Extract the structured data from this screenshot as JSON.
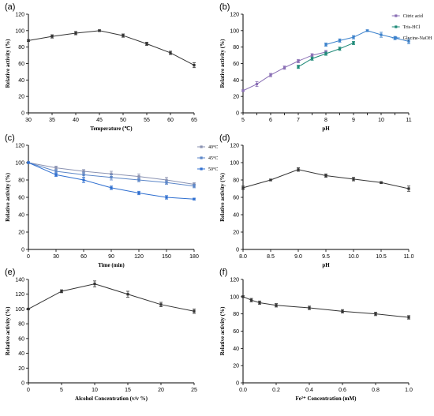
{
  "chart_data": [
    {
      "panel": "(a)",
      "type": "line",
      "xlabel": "Temperature (℃)",
      "ylabel": "Relative activity (%)",
      "xlim": [
        30,
        65
      ],
      "ylim": [
        0,
        120
      ],
      "xticks": [
        30,
        35,
        40,
        45,
        50,
        55,
        60,
        65
      ],
      "yticks": [
        0,
        20,
        40,
        60,
        80,
        100,
        120
      ],
      "colors": {
        "series": "#333333"
      },
      "series": [
        {
          "x": [
            30,
            35,
            40,
            45,
            50,
            55,
            60,
            65
          ],
          "values": [
            88,
            93,
            97,
            100,
            94,
            84,
            73,
            58
          ],
          "errors": [
            1,
            2,
            2,
            1,
            2,
            2,
            2,
            3
          ],
          "color": "#333333"
        }
      ]
    },
    {
      "panel": "(b)",
      "type": "line",
      "xlabel": "pH",
      "ylabel": "Relative activity (%)",
      "xlim": [
        5,
        11
      ],
      "ylim": [
        0,
        120
      ],
      "xticks": [
        5,
        5.5,
        6,
        6.5,
        7,
        7.5,
        8,
        8.5,
        9,
        9.5,
        10,
        10.5,
        11
      ],
      "xticklabels": [
        "5",
        "",
        "6",
        "",
        "7",
        "",
        "8",
        "",
        "9",
        "",
        "10",
        "",
        "11"
      ],
      "yticks": [
        0,
        20,
        40,
        60,
        80,
        100,
        120
      ],
      "legend": "top-right",
      "series": [
        {
          "name": "Citric acid",
          "x": [
            5,
            5.5,
            6,
            6.5,
            7,
            7.5,
            8
          ],
          "values": [
            27,
            35,
            46,
            55,
            63,
            70,
            74
          ],
          "errors": [
            1,
            3,
            2,
            2,
            2,
            2,
            2
          ],
          "color": "#8a6fb5"
        },
        {
          "name": "Tris-HCl",
          "x": [
            7,
            7.5,
            8,
            8.5,
            9
          ],
          "values": [
            56,
            66,
            72,
            78,
            85
          ],
          "errors": [
            2,
            2,
            2,
            2,
            2
          ],
          "color": "#1f8a78"
        },
        {
          "name": "Glycine-NaOH",
          "x": [
            8,
            8.5,
            9,
            9.5,
            10,
            10.5,
            11
          ],
          "values": [
            83,
            88,
            92,
            100,
            95,
            91,
            87
          ],
          "errors": [
            2,
            2,
            2,
            1,
            3,
            2,
            3
          ],
          "color": "#3c82cc"
        }
      ]
    },
    {
      "panel": "(c)",
      "type": "line",
      "xlabel": "Time (min)",
      "ylabel": "Relative activity (%)",
      "xlim": [
        0,
        180
      ],
      "ylim": [
        0,
        120
      ],
      "xticks": [
        0,
        30,
        60,
        90,
        120,
        150,
        180
      ],
      "yticks": [
        0,
        20,
        40,
        60,
        80,
        100,
        120
      ],
      "legend": "top-right",
      "series": [
        {
          "name": "40°C",
          "x": [
            0,
            30,
            60,
            90,
            120,
            150,
            180
          ],
          "values": [
            100,
            94,
            90,
            87,
            84,
            80,
            75
          ],
          "errors": [
            1,
            2,
            2,
            3,
            3,
            3,
            2
          ],
          "color": "#8a92b2"
        },
        {
          "name": "45°C",
          "x": [
            0,
            30,
            60,
            90,
            120,
            150,
            180
          ],
          "values": [
            100,
            90,
            86,
            83,
            80,
            77,
            73
          ],
          "errors": [
            1,
            2,
            3,
            3,
            2,
            2,
            2
          ],
          "color": "#5b86c8"
        },
        {
          "name": "50°C",
          "x": [
            0,
            30,
            60,
            90,
            120,
            150,
            180
          ],
          "values": [
            100,
            86,
            80,
            71,
            65,
            60,
            58
          ],
          "errors": [
            1,
            2,
            3,
            2,
            2,
            2,
            1
          ],
          "color": "#2f6fd0"
        }
      ]
    },
    {
      "panel": "(d)",
      "type": "line",
      "xlabel": "pH",
      "ylabel": "Relative activity (%)",
      "xlim": [
        8,
        11
      ],
      "ylim": [
        0,
        120
      ],
      "xticks": [
        8,
        8.5,
        9,
        9.5,
        10,
        10.5,
        11
      ],
      "xticklabels": [
        "8.0",
        "8.5",
        "9.0",
        "9.5",
        "10.0",
        "10.5",
        "11.0"
      ],
      "yticks": [
        0,
        20,
        40,
        60,
        80,
        100,
        120
      ],
      "series": [
        {
          "x": [
            8,
            8.5,
            9,
            9.5,
            10,
            10.5,
            11
          ],
          "values": [
            71,
            80,
            92,
            85,
            81,
            77,
            70
          ],
          "errors": [
            2,
            1,
            2,
            2,
            2,
            1,
            3
          ],
          "color": "#333333"
        }
      ]
    },
    {
      "panel": "(e)",
      "type": "line",
      "xlabel": "Alcohol Concentration (v/v %)",
      "ylabel": "Relative activity (%)",
      "xlim": [
        0,
        25
      ],
      "ylim": [
        0,
        140
      ],
      "xticks": [
        0,
        5,
        10,
        15,
        20,
        25
      ],
      "yticks": [
        0,
        20,
        40,
        60,
        80,
        100,
        120,
        140
      ],
      "series": [
        {
          "x": [
            0,
            5,
            10,
            15,
            20,
            25
          ],
          "values": [
            100,
            124,
            134,
            120,
            106,
            97
          ],
          "errors": [
            1,
            2,
            4,
            4,
            3,
            3
          ],
          "color": "#333333"
        }
      ]
    },
    {
      "panel": "(f)",
      "type": "line",
      "xlabel": "Fe²⁺ Concentration (mM)",
      "ylabel": "Relative activity (%)",
      "xlim": [
        0,
        1
      ],
      "ylim": [
        0,
        120
      ],
      "xticks": [
        0,
        0.2,
        0.4,
        0.6,
        0.8,
        1.0
      ],
      "xticklabels": [
        "0.0",
        "0.2",
        "0.4",
        "0.6",
        "0.8",
        "1.0"
      ],
      "yticks": [
        0,
        20,
        40,
        60,
        80,
        100,
        120
      ],
      "series": [
        {
          "x": [
            0,
            0.05,
            0.1,
            0.2,
            0.4,
            0.6,
            0.8,
            1.0
          ],
          "values": [
            100,
            96,
            93,
            90,
            87,
            83,
            80,
            76
          ],
          "errors": [
            1,
            2,
            2,
            2,
            2,
            2,
            2,
            2
          ],
          "color": "#333333"
        }
      ]
    }
  ]
}
